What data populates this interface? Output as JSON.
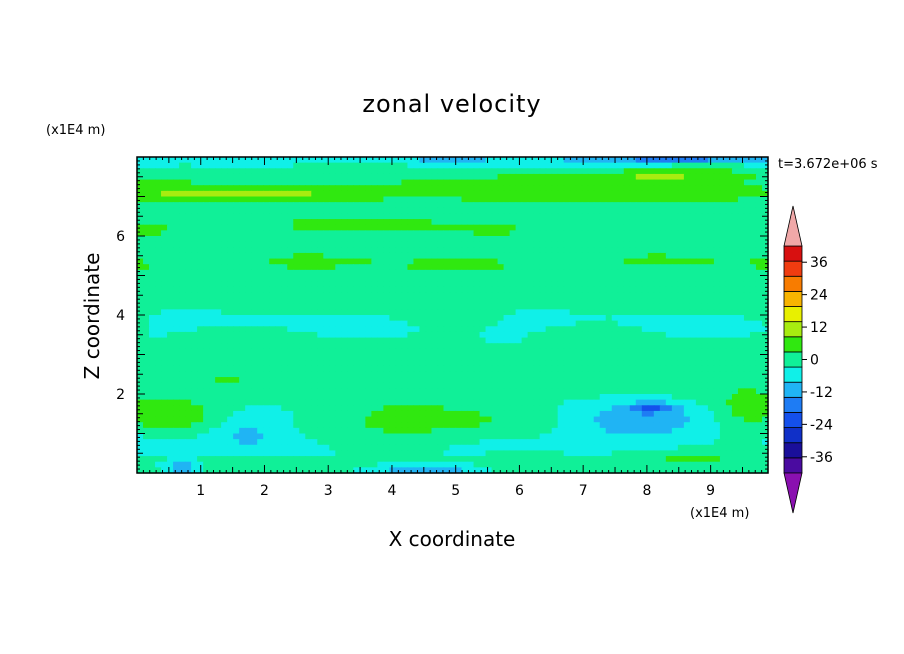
{
  "chart_data": {
    "type": "heatmap",
    "title": "zonal velocity",
    "xlabel": "X coordinate",
    "ylabel": "Z coordinate",
    "x_unit": "(x1E4 m)",
    "y_unit": "(x1E4 m)",
    "time_label": "t=3.672e+06 s",
    "xlim": [
      0,
      9.9
    ],
    "ylim": [
      0,
      8
    ],
    "x_ticks": [
      "1",
      "2",
      "3",
      "4",
      "5",
      "6",
      "7",
      "8",
      "9"
    ],
    "y_ticks": [
      "2",
      "4",
      "6"
    ],
    "colorbar": {
      "labels": [
        "36",
        "24",
        "12",
        "0",
        "-12",
        "-24",
        "-36"
      ],
      "levels": [
        -42,
        -36,
        -30,
        -24,
        -18,
        -12,
        -6,
        0,
        6,
        12,
        18,
        24,
        30,
        36,
        42
      ],
      "colors": [
        "#4a0ba0",
        "#1a0f9a",
        "#1030c8",
        "#1450ec",
        "#1e7cf4",
        "#20b4f4",
        "#10f0e8",
        "#10f098",
        "#30e810",
        "#a8ec10",
        "#e8f000",
        "#f8b400",
        "#f87c00",
        "#f03c10",
        "#d81010"
      ],
      "under_color": "#8a10b0",
      "over_color": "#f0a8a8"
    },
    "field": {
      "background_value": 2,
      "bands": [
        {
          "z": 7.9,
          "w": 0.12,
          "v": -8
        },
        {
          "z": 7.45,
          "w": 0.35,
          "v": 3
        },
        {
          "z": 7.05,
          "w": 0.18,
          "v": 7
        },
        {
          "z": 6.2,
          "w": 0.35,
          "v": 3
        },
        {
          "z": 5.3,
          "w": 0.3,
          "v": 4
        },
        {
          "z": 4.45,
          "w": 0.35,
          "v": 2.5
        },
        {
          "z": 3.8,
          "w": 0.5,
          "v": -2.5
        },
        {
          "z": 2.9,
          "w": 0.45,
          "v": 0.5
        },
        {
          "z": 2.3,
          "w": 0.25,
          "v": 2.5
        },
        {
          "z": 0.7,
          "w": 0.5,
          "v": -3
        }
      ],
      "blobs": [
        {
          "x": 8.0,
          "z": 7.45,
          "sx": 1.1,
          "sz": 0.2,
          "v": 9
        },
        {
          "x": 1.8,
          "z": 7.1,
          "sx": 1.0,
          "sz": 0.15,
          "v": 5
        },
        {
          "x": 3.5,
          "z": 6.3,
          "sx": 1.0,
          "sz": 0.15,
          "v": 5
        },
        {
          "x": 5.0,
          "z": 7.3,
          "sx": 0.8,
          "sz": 0.12,
          "v": 4
        },
        {
          "x": 0.4,
          "z": 1.5,
          "sx": 0.85,
          "sz": 0.45,
          "v": 9
        },
        {
          "x": 4.6,
          "z": 1.25,
          "sx": 1.5,
          "sz": 0.45,
          "v": 8
        },
        {
          "x": 9.6,
          "z": 1.55,
          "sx": 0.5,
          "sz": 0.5,
          "v": 7
        },
        {
          "x": 8.5,
          "z": 0.35,
          "sx": 1.3,
          "sz": 0.25,
          "v": 7
        },
        {
          "x": 2.2,
          "z": 0.2,
          "sx": 0.7,
          "sz": 0.2,
          "v": 6
        },
        {
          "x": 1.7,
          "z": 1.1,
          "sx": 0.6,
          "sz": 0.5,
          "v": -8
        },
        {
          "x": 7.8,
          "z": 1.35,
          "sx": 1.2,
          "sz": 0.5,
          "v": -11
        },
        {
          "x": 8.1,
          "z": 1.65,
          "sx": 0.35,
          "sz": 0.12,
          "v": -14
        },
        {
          "x": 0.7,
          "z": 0.15,
          "sx": 0.3,
          "sz": 0.15,
          "v": -14
        },
        {
          "x": 4.5,
          "z": 0.08,
          "sx": 0.8,
          "sz": 0.1,
          "v": -12
        },
        {
          "x": 8.5,
          "z": 7.95,
          "sx": 1.2,
          "sz": 0.12,
          "v": -10
        }
      ]
    }
  }
}
